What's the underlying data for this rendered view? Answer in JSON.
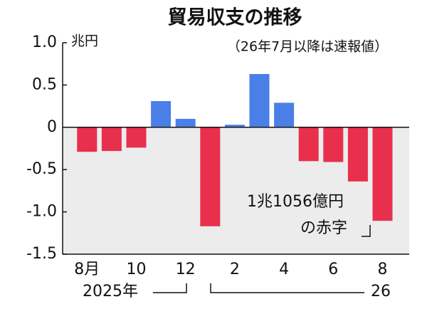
{
  "chart_data": {
    "type": "bar",
    "title": "貿易収支の推移",
    "subtitle": "（26年7月以降は速報値）",
    "y_unit": "兆円",
    "categories": [
      "8月",
      null,
      "10",
      null,
      "12",
      null,
      "2",
      null,
      "4",
      null,
      "6",
      null,
      "8"
    ],
    "values": [
      -0.29,
      -0.28,
      -0.24,
      0.31,
      0.1,
      -1.17,
      0.03,
      0.63,
      0.29,
      -0.4,
      -0.41,
      -0.64,
      -1.1056
    ],
    "positive_color": "#4a7fe8",
    "negative_color": "#e8304c",
    "ylim": [
      -1.5,
      1.0
    ],
    "yticks": [
      {
        "value": 1,
        "label": "1.0"
      },
      0.5,
      0,
      -0.5,
      {
        "value": -1,
        "label": "-1.0"
      },
      -1.5
    ],
    "year_labels": [
      "2025年",
      "26"
    ],
    "annotations": [
      "1兆1056億円",
      "の赤字"
    ]
  }
}
